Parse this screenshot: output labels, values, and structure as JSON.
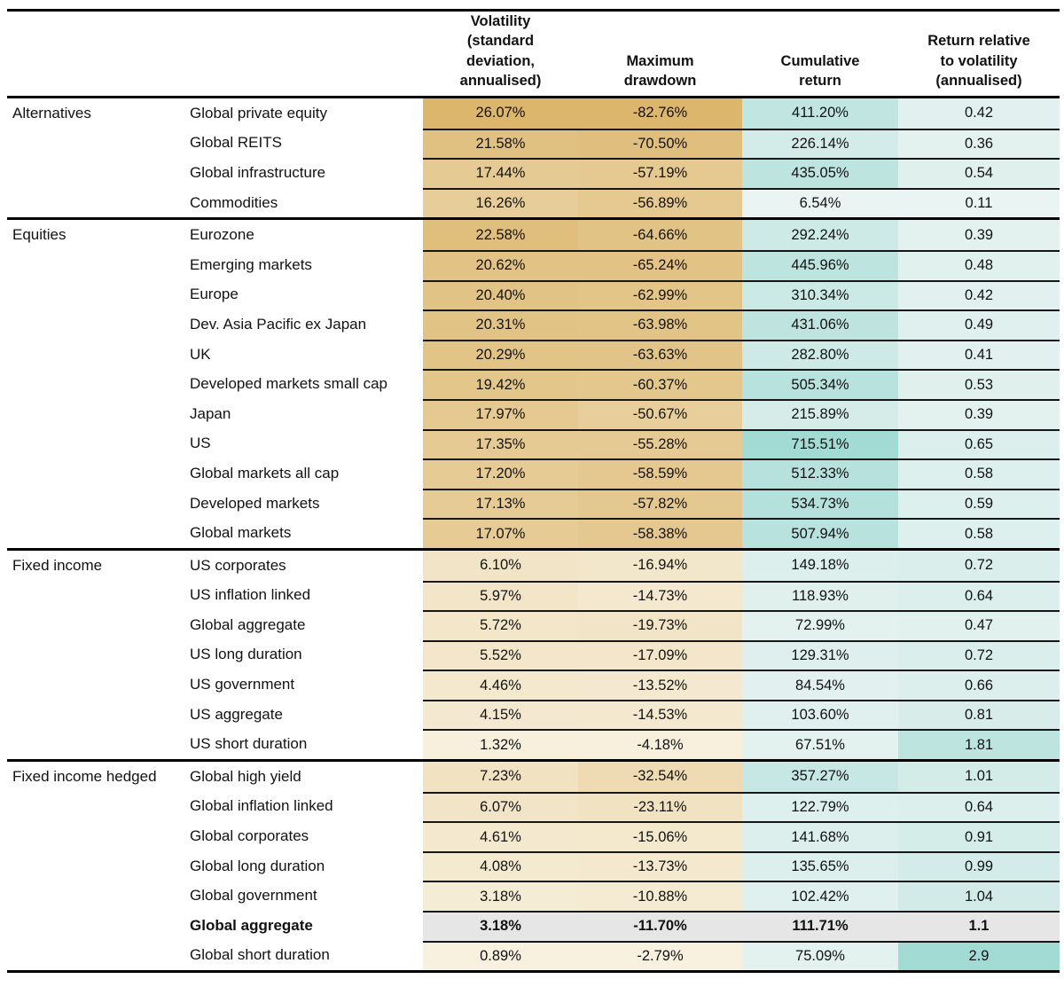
{
  "chart_data": {
    "type": "table",
    "subtype": "conditional-format-heatmap",
    "legend": "none",
    "grid": "off",
    "columns": [
      {
        "id": "volatility",
        "label": "Volatility (standard deviation, annualised)",
        "lines": [
          "Volatility",
          "(standard",
          "deviation,",
          "annualised)"
        ],
        "scale": "gold"
      },
      {
        "id": "max_drawdown",
        "label": "Maximum drawdown",
        "lines": [
          "Maximum",
          "drawdown"
        ],
        "scale": "gold"
      },
      {
        "id": "cumulative_return",
        "label": "Cumulative return",
        "lines": [
          "Cumulative",
          "return"
        ],
        "scale": "teal"
      },
      {
        "id": "return_relative_to_volatility",
        "label": "Return relative to volatility (annualised)",
        "lines": [
          "Return relative",
          "to volatility",
          "(annualised)"
        ],
        "scale": "teal"
      }
    ],
    "sections": [
      {
        "category": "Alternatives",
        "rows": [
          {
            "asset": "Global private equity",
            "values": [
              "26.07%",
              "-82.76%",
              "411.20%",
              "0.42"
            ],
            "highlight": false
          },
          {
            "asset": "Global REITS",
            "values": [
              "21.58%",
              "-70.50%",
              "226.14%",
              "0.36"
            ],
            "highlight": false
          },
          {
            "asset": "Global infrastructure",
            "values": [
              "17.44%",
              "-57.19%",
              "435.05%",
              "0.54"
            ],
            "highlight": false
          },
          {
            "asset": "Commodities",
            "values": [
              "16.26%",
              "-56.89%",
              "6.54%",
              "0.11"
            ],
            "highlight": false
          }
        ]
      },
      {
        "category": "Equities",
        "rows": [
          {
            "asset": "Eurozone",
            "values": [
              "22.58%",
              "-64.66%",
              "292.24%",
              "0.39"
            ],
            "highlight": false
          },
          {
            "asset": "Emerging markets",
            "values": [
              "20.62%",
              "-65.24%",
              "445.96%",
              "0.48"
            ],
            "highlight": false
          },
          {
            "asset": "Europe",
            "values": [
              "20.40%",
              "-62.99%",
              "310.34%",
              "0.42"
            ],
            "highlight": false
          },
          {
            "asset": "Dev. Asia Pacific ex Japan",
            "values": [
              "20.31%",
              "-63.98%",
              "431.06%",
              "0.49"
            ],
            "highlight": false
          },
          {
            "asset": "UK",
            "values": [
              "20.29%",
              "-63.63%",
              "282.80%",
              "0.41"
            ],
            "highlight": false
          },
          {
            "asset": "Developed markets small cap",
            "values": [
              "19.42%",
              "-60.37%",
              "505.34%",
              "0.53"
            ],
            "highlight": false
          },
          {
            "asset": "Japan",
            "values": [
              "17.97%",
              "-50.67%",
              "215.89%",
              "0.39"
            ],
            "highlight": false
          },
          {
            "asset": "US",
            "values": [
              "17.35%",
              "-55.28%",
              "715.51%",
              "0.65"
            ],
            "highlight": false
          },
          {
            "asset": "Global markets all cap",
            "values": [
              "17.20%",
              "-58.59%",
              "512.33%",
              "0.58"
            ],
            "highlight": false
          },
          {
            "asset": "Developed markets",
            "values": [
              "17.13%",
              "-57.82%",
              "534.73%",
              "0.59"
            ],
            "highlight": false
          },
          {
            "asset": "Global markets",
            "values": [
              "17.07%",
              "-58.38%",
              "507.94%",
              "0.58"
            ],
            "highlight": false
          }
        ]
      },
      {
        "category": "Fixed income",
        "rows": [
          {
            "asset": "US corporates",
            "values": [
              "6.10%",
              "-16.94%",
              "149.18%",
              "0.72"
            ],
            "highlight": false
          },
          {
            "asset": "US inflation linked",
            "values": [
              "5.97%",
              "-14.73%",
              "118.93%",
              "0.64"
            ],
            "highlight": false
          },
          {
            "asset": "Global aggregate",
            "values": [
              "5.72%",
              "-19.73%",
              "72.99%",
              "0.47"
            ],
            "highlight": false
          },
          {
            "asset": "US long duration",
            "values": [
              "5.52%",
              "-17.09%",
              "129.31%",
              "0.72"
            ],
            "highlight": false
          },
          {
            "asset": "US government",
            "values": [
              "4.46%",
              "-13.52%",
              "84.54%",
              "0.66"
            ],
            "highlight": false
          },
          {
            "asset": "US aggregate",
            "values": [
              "4.15%",
              "-14.53%",
              "103.60%",
              "0.81"
            ],
            "highlight": false
          },
          {
            "asset": "US short duration",
            "values": [
              "1.32%",
              "-4.18%",
              "67.51%",
              "1.81"
            ],
            "highlight": false
          }
        ]
      },
      {
        "category": "Fixed income hedged",
        "rows": [
          {
            "asset": "Global high yield",
            "values": [
              "7.23%",
              "-32.54%",
              "357.27%",
              "1.01"
            ],
            "highlight": false
          },
          {
            "asset": "Global inflation linked",
            "values": [
              "6.07%",
              "-23.11%",
              "122.79%",
              "0.64"
            ],
            "highlight": false
          },
          {
            "asset": "Global corporates",
            "values": [
              "4.61%",
              "-15.06%",
              "141.68%",
              "0.91"
            ],
            "highlight": false
          },
          {
            "asset": "Global long duration",
            "values": [
              "4.08%",
              "-13.73%",
              "135.65%",
              "0.99"
            ],
            "highlight": false
          },
          {
            "asset": "Global government",
            "values": [
              "3.18%",
              "-10.88%",
              "102.42%",
              "1.04"
            ],
            "highlight": false
          },
          {
            "asset": "Global aggregate",
            "values": [
              "3.18%",
              "-11.70%",
              "111.71%",
              "1.1"
            ],
            "highlight": true
          },
          {
            "asset": "Global short duration",
            "values": [
              "0.89%",
              "-2.79%",
              "75.09%",
              "2.9"
            ],
            "highlight": false
          }
        ]
      }
    ],
    "heatmap_colors": {
      "gold_pale": "#F8F1DF",
      "gold_dark": "#DCB66C",
      "teal_pale": "#EAF4F2",
      "teal_dark": "#A2DAD4",
      "highlight_bg": "#E6E6E6",
      "text": "#121212",
      "rule_thick": "#000000",
      "rule_thin": "#161616"
    }
  }
}
